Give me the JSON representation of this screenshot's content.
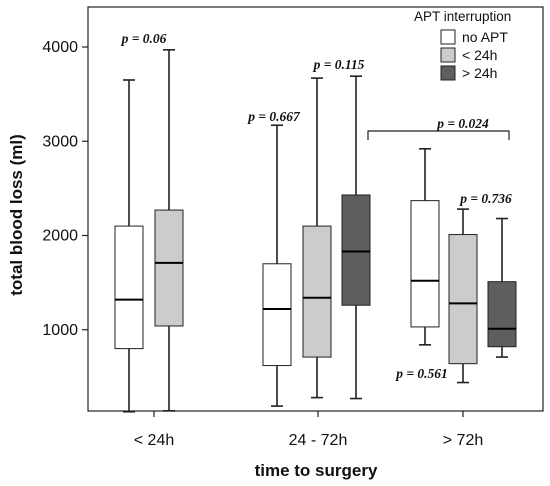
{
  "chart_data": {
    "type": "boxplot",
    "xlabel": "time to surgery",
    "ylabel": "total blood loss (ml)",
    "yticks": [
      1000,
      2000,
      3000,
      4000
    ],
    "categories": [
      "< 24h",
      "24 - 72h",
      "> 72h"
    ],
    "legend": {
      "title": "APT interruption",
      "placement": "top-right",
      "entries": [
        {
          "label": "no APT",
          "color": "#ffffff"
        },
        {
          "label": "< 24h",
          "color": "#cccccc"
        },
        {
          "label": "> 24h",
          "color": "#5e5e5e"
        }
      ]
    },
    "boxes": [
      {
        "category": "< 24h",
        "group": "no APT",
        "min": 130,
        "q1": 800,
        "median": 1320,
        "q3": 2100,
        "max": 3650
      },
      {
        "category": "< 24h",
        "group": "< 24h",
        "min": 140,
        "q1": 1040,
        "median": 1710,
        "q3": 2270,
        "max": 3970
      },
      {
        "category": "24 - 72h",
        "group": "no APT",
        "min": 190,
        "q1": 620,
        "median": 1220,
        "q3": 1700,
        "max": 3170
      },
      {
        "category": "24 - 72h",
        "group": "< 24h",
        "min": 280,
        "q1": 710,
        "median": 1340,
        "q3": 2100,
        "max": 3670
      },
      {
        "category": "24 - 72h",
        "group": "> 24h",
        "min": 270,
        "q1": 1260,
        "median": 1830,
        "q3": 2430,
        "max": 3690
      },
      {
        "category": "> 72h",
        "group": "no APT",
        "min": 840,
        "q1": 1030,
        "median": 1520,
        "q3": 2370,
        "max": 2920
      },
      {
        "category": "> 72h",
        "group": "< 24h",
        "min": 440,
        "q1": 640,
        "median": 1280,
        "q3": 2010,
        "max": 2280
      },
      {
        "category": "> 72h",
        "group": "> 24h",
        "min": 710,
        "q1": 820,
        "median": 1010,
        "q3": 1510,
        "max": 2180
      }
    ],
    "annotations": [
      {
        "text": "p = 0.06",
        "category": "< 24h"
      },
      {
        "text": "p = 0.667",
        "category": "24 - 72h"
      },
      {
        "text": "p = 0.115",
        "category": "24 - 72h"
      },
      {
        "text": "p = 0.024",
        "category": "24 - 72h vs > 72h"
      },
      {
        "text": "p = 0.736",
        "category": "> 72h"
      },
      {
        "text": "p = 0.561",
        "category": "> 72h"
      }
    ]
  },
  "colors": {
    "no_apt": "#ffffff",
    "lt24": "#cccccc",
    "gt24": "#5e5e5e",
    "stroke": "#222222"
  }
}
